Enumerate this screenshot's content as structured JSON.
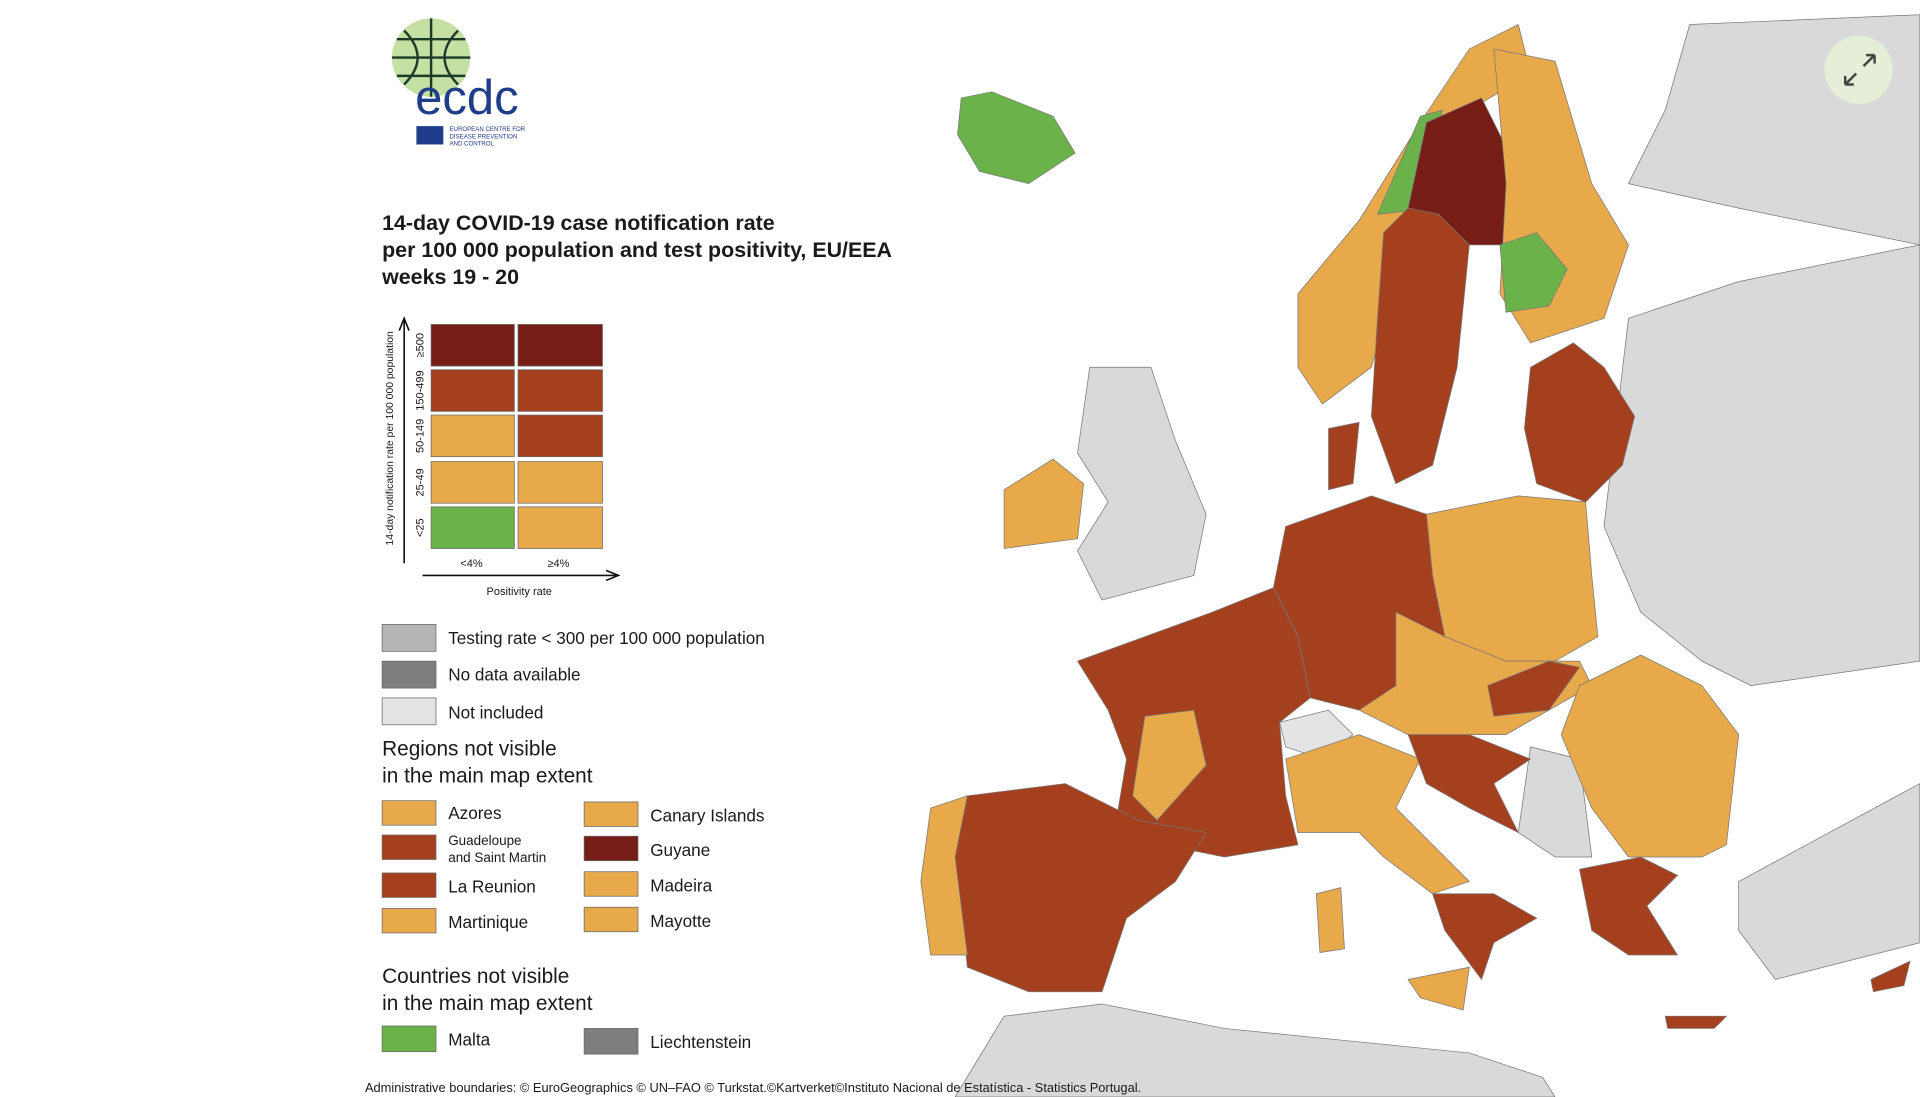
{
  "logo": {
    "acronym": "ecdc",
    "lines": [
      "EUROPEAN CENTRE FOR",
      "DISEASE PREVENTION",
      "AND CONTROL"
    ]
  },
  "title": [
    "14-day COVID-19 case notification rate",
    "per 100 000 population and test positivity, EU/EEA",
    "weeks 19 - 20"
  ],
  "legend_matrix": {
    "y_axis_title": "14-day notification rate per 100 000 population",
    "rows": [
      "≥500",
      "150-499",
      "50-149",
      "25-49",
      "<25"
    ],
    "columns": [
      "<4%",
      "≥4%"
    ],
    "x_axis_title": "Positivity rate"
  },
  "legend": [
    "Testing rate < 300 per 100 000 population",
    "No data available",
    "Not included"
  ],
  "regions": {
    "heading": [
      "Regions not visible",
      "in the main map extent"
    ],
    "items": [
      "Azores",
      "Canary Islands",
      [
        "Guadeloupe",
        "and Saint Martin"
      ],
      "Guyane",
      "La Reunion",
      "Madeira",
      "Martinique",
      "Mayotte"
    ]
  },
  "countries": {
    "heading": [
      "Countries not visible",
      "in the main map extent"
    ],
    "items": [
      "Malta",
      "Liechtenstein"
    ]
  },
  "footer": "Administrative boundaries: © EuroGeographics © UN–FAO © Turkstat.©Kartverket©Instituto Nacional de Estatística - Statistics Portugal."
}
